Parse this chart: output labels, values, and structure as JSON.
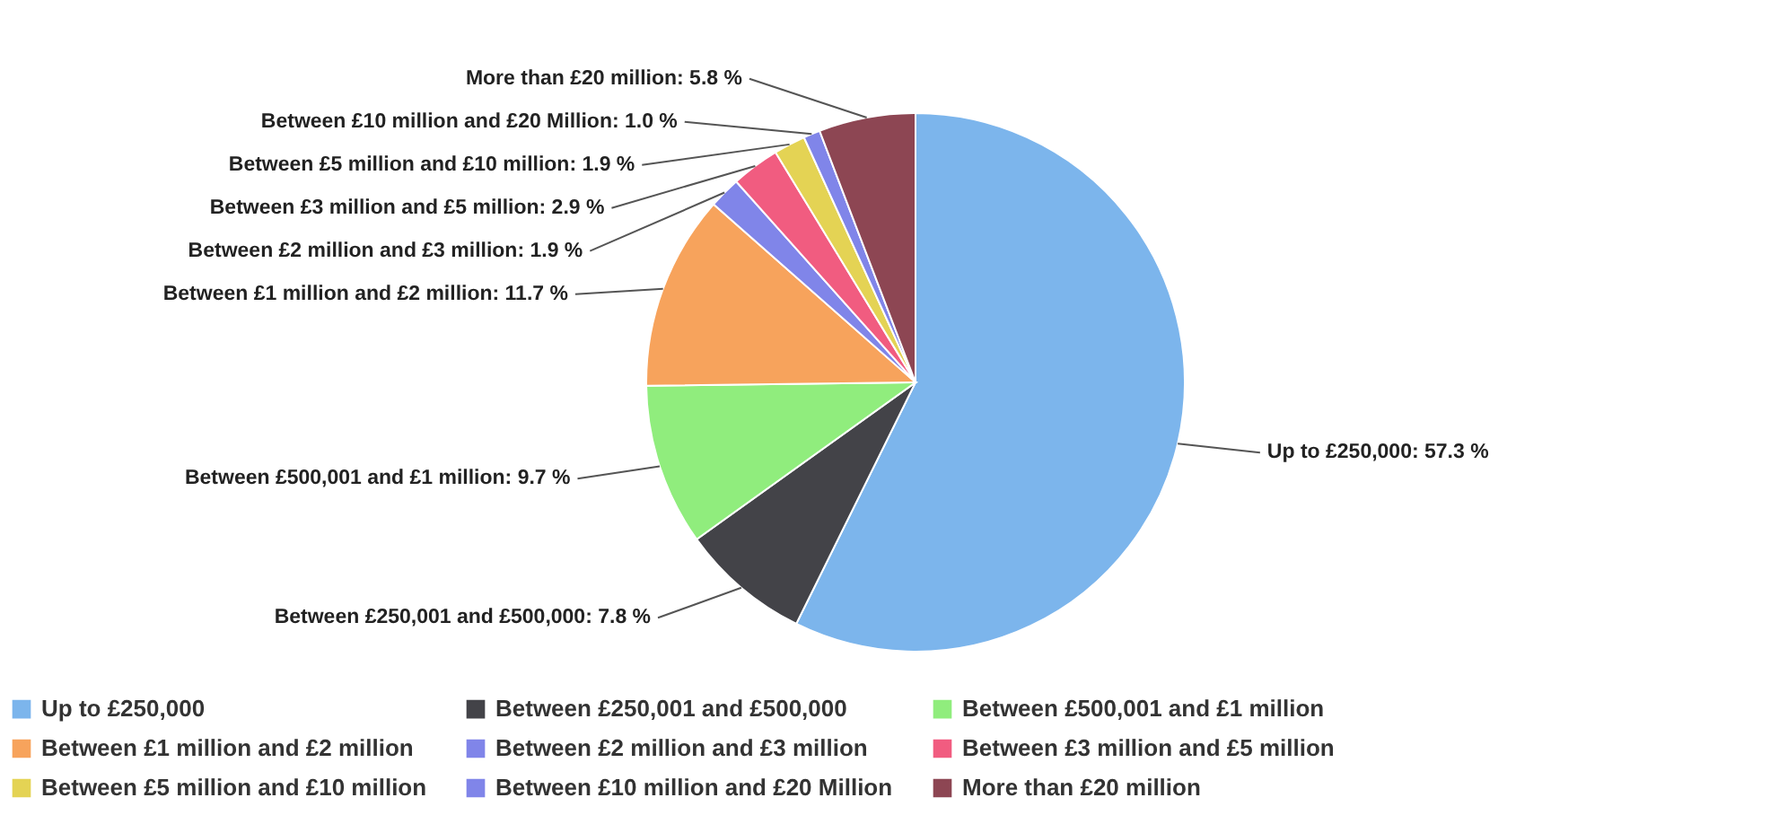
{
  "chart_data": {
    "type": "pie",
    "categories": [
      "Up to £250,000",
      "Between £250,001 and £500,000",
      "Between £500,001 and £1 million",
      "Between £1 million and £2 million",
      "Between £2 million and £3 million",
      "Between £3 million and £5 million",
      "Between £5 million and £10 million",
      "Between £10 million and £20 Million",
      "More than £20 million"
    ],
    "values": [
      57.3,
      7.8,
      9.7,
      11.7,
      1.9,
      2.9,
      1.9,
      1.0,
      5.8
    ],
    "value_labels": [
      "Up to £250,000: 57.3 %",
      "Between £250,001 and £500,000: 7.8 %",
      "Between £500,001 and £1 million: 9.7 %",
      "Between £1 million and £2 million: 11.7 %",
      "Between £2 million and £3 million: 1.9 %",
      "Between £3 million and £5 million: 2.9 %",
      "Between £5 million and £10 million: 1.9 %",
      "Between £10 million and £20 Million: 1.0 %",
      "More than £20 million: 5.8 %"
    ],
    "colors": [
      "#7cb5ec",
      "#434348",
      "#90ed7d",
      "#f7a35c",
      "#8085e9",
      "#f15c80",
      "#e4d354",
      "#8085e9",
      "#8d4653"
    ],
    "legend": "bottom"
  }
}
